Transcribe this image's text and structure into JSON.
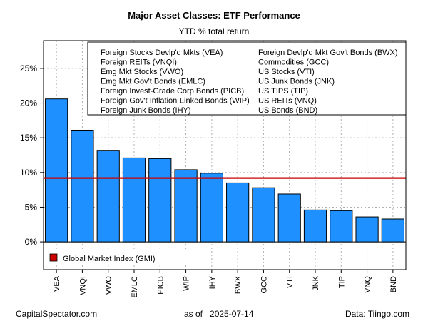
{
  "chart_data": {
    "type": "bar",
    "title": "Major Asset Classes: ETF Performance",
    "subtitle": "YTD % total return",
    "categories": [
      "VEA",
      "VNQI",
      "VWO",
      "EMLC",
      "PICB",
      "WIP",
      "IHY",
      "BWX",
      "GCC",
      "VTI",
      "JNK",
      "TIP",
      "VNQ",
      "BND"
    ],
    "values": [
      20.6,
      16.1,
      13.2,
      12.1,
      12.0,
      10.4,
      9.9,
      8.5,
      7.8,
      6.9,
      4.6,
      4.5,
      3.6,
      3.3
    ],
    "ylim": [
      -4,
      29
    ],
    "yticks": [
      0,
      5,
      10,
      15,
      20,
      25
    ],
    "ytick_labels": [
      "0%",
      "5%",
      "10%",
      "15%",
      "20%",
      "25%"
    ],
    "bar_color": "#1e90ff",
    "reference_line": {
      "label": "Global Market Index (GMI)",
      "value": 9.2,
      "color": "#cc0000"
    },
    "grid": true,
    "legend_position": "top-right",
    "legend_entries": [
      "Foreign Stocks Devlp'd Mkts (VEA)",
      "Foreign REITs (VNQI)",
      "Emg Mkt Stocks (VWO)",
      "Emg Mkt Gov't Bonds (EMLC)",
      "Foreign Invest-Grade Corp Bonds (PICB)",
      "Foreign Gov't Inflation-Linked Bonds (WIP)",
      "Foreign Junk Bonds (IHY)",
      "Foreign Devlp'd Mkt Gov't Bonds (BWX)",
      "Commodities (GCC)",
      "US Stocks (VTI)",
      "US Junk Bonds (JNK)",
      "US TIPS (TIP)",
      "US REITs (VNQ)",
      "US Bonds (BND)"
    ]
  },
  "footer": {
    "left": "CapitalSpectator.com",
    "middle": "as of   2025-07-14",
    "right": "Data: Tiingo.com"
  }
}
